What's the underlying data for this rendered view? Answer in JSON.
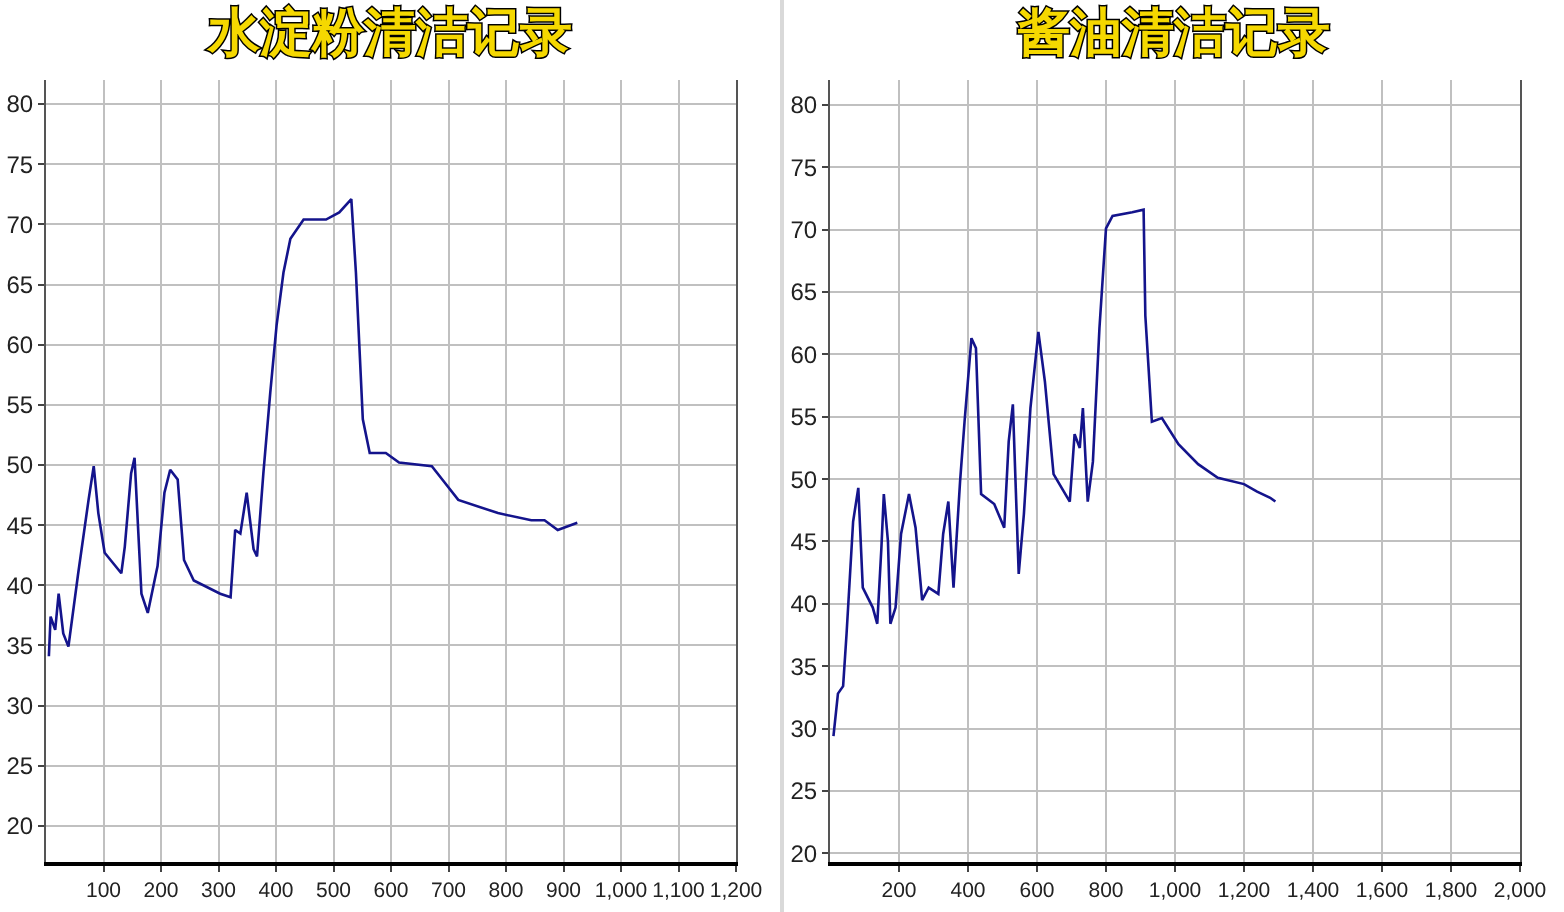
{
  "chart_data": [
    {
      "type": "line",
      "title": "水淀粉清洁记录",
      "grid": true,
      "xlim": [
        0,
        1200
      ],
      "xticks": [
        100,
        200,
        300,
        400,
        500,
        600,
        700,
        800,
        900,
        {
          "value": 1000,
          "label": "1,000"
        },
        {
          "value": 1100,
          "label": "1,100"
        },
        {
          "value": 1200,
          "label": "1,200"
        }
      ],
      "ylim": [
        17,
        82
      ],
      "yticks": [
        20,
        25,
        30,
        35,
        40,
        45,
        50,
        55,
        60,
        65,
        70,
        75,
        80
      ],
      "series": [
        {
          "color": "#14148c",
          "x": [
            5,
            8,
            16,
            22,
            30,
            39,
            56,
            74,
            83,
            91,
            102,
            131,
            137,
            148,
            154,
            160,
            166,
            177,
            194,
            206,
            216,
            229,
            240,
            257,
            303,
            321,
            329,
            338,
            349,
            361,
            367,
            378,
            390,
            401,
            413,
            425,
            448,
            487,
            510,
            531,
            539,
            551,
            563,
            591,
            614,
            671,
            694,
            717,
            786,
            844,
            867,
            890,
            924
          ],
          "values": [
            34.1,
            37.4,
            36.3,
            39.3,
            36,
            34.9,
            41,
            47.1,
            49.9,
            46,
            42.7,
            41,
            43.2,
            49.3,
            50.6,
            44.9,
            39.3,
            37.7,
            41.6,
            47.7,
            49.6,
            48.8,
            42.1,
            40.4,
            39.3,
            39,
            44.6,
            44.3,
            47.7,
            43,
            42.4,
            49.3,
            56,
            61.6,
            66,
            68.8,
            70.4,
            70.4,
            71,
            72.1,
            66,
            53.8,
            51,
            51,
            50.2,
            49.9,
            48.5,
            47.1,
            46,
            45.4,
            45.4,
            44.6,
            45.2
          ]
        }
      ]
    },
    {
      "type": "line",
      "title": "酱油清洁记录",
      "grid": true,
      "xlim": [
        0,
        2000
      ],
      "xticks": [
        200,
        400,
        600,
        800,
        {
          "value": 1000,
          "label": "1,000"
        },
        {
          "value": 1200,
          "label": "1,200"
        },
        {
          "value": 1400,
          "label": "1,400"
        },
        {
          "value": 1600,
          "label": "1,600"
        },
        {
          "value": 1800,
          "label": "1,800"
        },
        {
          "value": 2000,
          "label": "2,000"
        }
      ],
      "ylim": [
        19.3,
        82
      ],
      "yticks": [
        20,
        25,
        30,
        35,
        40,
        45,
        50,
        55,
        60,
        65,
        70,
        75,
        80
      ],
      "series": [
        {
          "color": "#14148c",
          "x": [
            10,
            23,
            38,
            48,
            67,
            82,
            95,
            124,
            137,
            149,
            156,
            168,
            175,
            190,
            206,
            229,
            248,
            267,
            286,
            314,
            328,
            343,
            358,
            377,
            390,
            410,
            423,
            438,
            476,
            505,
            518,
            530,
            547,
            562,
            581,
            604,
            623,
            648,
            695,
            709,
            724,
            733,
            747,
            762,
            781,
            800,
            819,
            876,
            909,
            914,
            933,
            962,
            1010,
            1067,
            1124,
            1200,
            1238,
            1276,
            1291
          ],
          "values": [
            29.4,
            32.8,
            33.4,
            37.6,
            46.6,
            49.3,
            41.3,
            39.7,
            38.4,
            44.5,
            48.8,
            45,
            38.4,
            39.7,
            45.6,
            48.8,
            46.1,
            40.3,
            41.3,
            40.8,
            45.6,
            48.2,
            41.3,
            49.8,
            54.6,
            61.3,
            60.5,
            48.8,
            48,
            46.1,
            53,
            56,
            42.4,
            47.2,
            55.7,
            61.8,
            57.8,
            50.4,
            48.2,
            53.6,
            52.5,
            55.7,
            48.2,
            51.4,
            62.1,
            70.1,
            71.1,
            71.4,
            71.6,
            63.1,
            54.6,
            54.9,
            52.8,
            51.2,
            50.1,
            49.6,
            49,
            48.5,
            48.2
          ]
        }
      ]
    }
  ]
}
